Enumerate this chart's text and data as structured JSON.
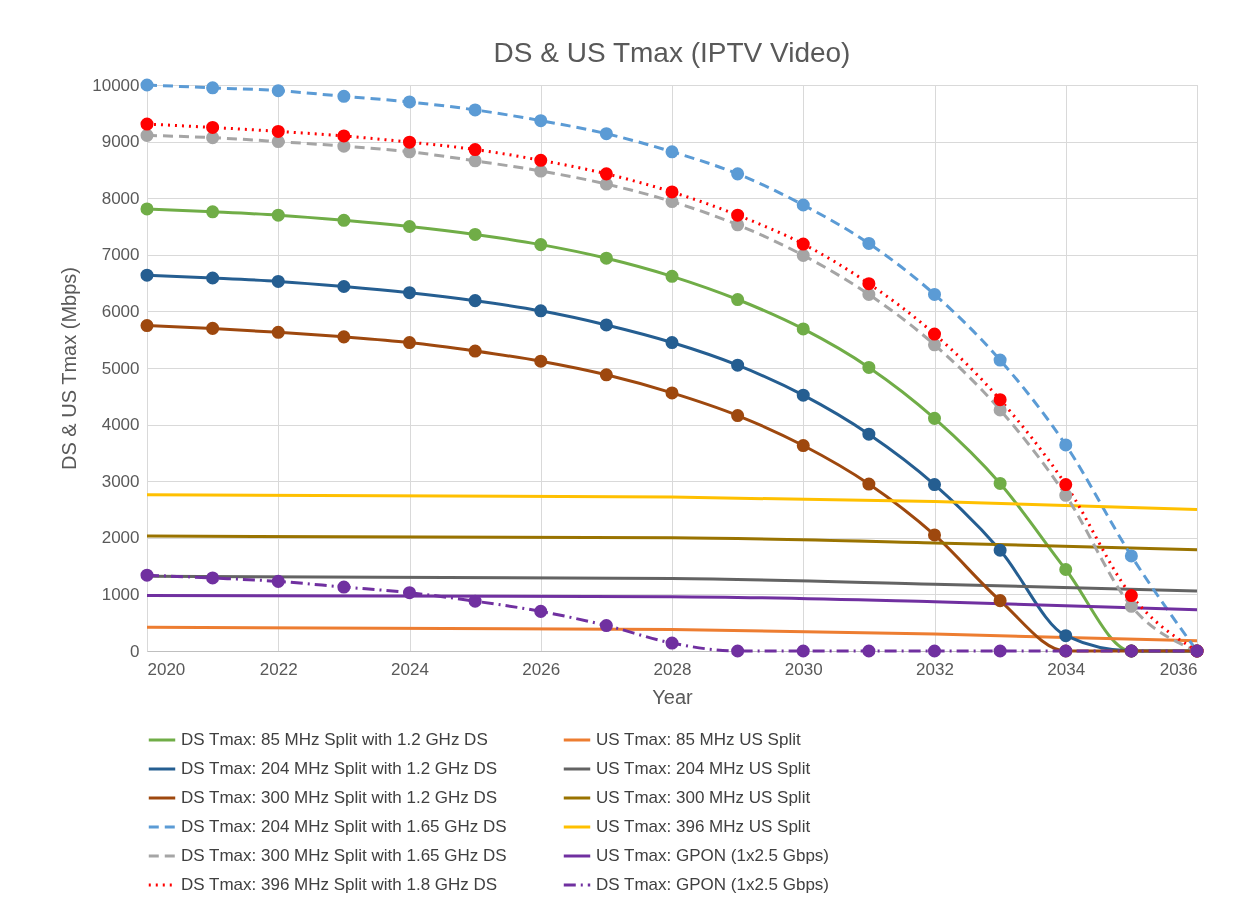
{
  "chart_data": {
    "type": "line",
    "title": "DS & US Tmax (IPTV Video)",
    "xlabel": "Year",
    "ylabel": "DS & US Tmax (Mbps)",
    "x": [
      2020,
      2021,
      2022,
      2023,
      2024,
      2025,
      2026,
      2027,
      2028,
      2029,
      2030,
      2031,
      2032,
      2033,
      2034,
      2035,
      2036
    ],
    "xlim": [
      2020,
      2036
    ],
    "xticks": [
      2020,
      2022,
      2024,
      2026,
      2028,
      2030,
      2032,
      2034,
      2036
    ],
    "ylim": [
      0,
      10000
    ],
    "yticks": [
      0,
      1000,
      2000,
      3000,
      4000,
      5000,
      6000,
      7000,
      8000,
      9000,
      10000
    ],
    "grid": true,
    "legend": "bottom",
    "series": [
      {
        "name": "DS Tmax: 85 MHz Split with 1.2 GHz DS",
        "color": "#70ad47",
        "marker": "circle",
        "line_style": "solid",
        "values": [
          7810,
          7760,
          7700,
          7610,
          7500,
          7360,
          7180,
          6940,
          6620,
          6210,
          5690,
          5010,
          4110,
          2960,
          1440,
          0,
          0
        ]
      },
      {
        "name": "US Tmax: 85 MHz US Split",
        "color": "#ed7d31",
        "marker": "none",
        "line_style": "solid",
        "x": [
          2020,
          2028,
          2032,
          2036
        ],
        "values": [
          420,
          380,
          300,
          180
        ]
      },
      {
        "name": "DS Tmax: 204 MHz Split with 1.2 GHz DS",
        "color": "#255e91",
        "marker": "circle",
        "line_style": "solid",
        "values": [
          6640,
          6590,
          6530,
          6440,
          6330,
          6190,
          6010,
          5760,
          5450,
          5050,
          4520,
          3830,
          2940,
          1780,
          270,
          0,
          0
        ]
      },
      {
        "name": "US Tmax: 204 MHz US Split",
        "color": "#636363",
        "marker": "none",
        "line_style": "solid",
        "x": [
          2020,
          2028,
          2032,
          2036
        ],
        "values": [
          1320,
          1280,
          1180,
          1060
        ]
      },
      {
        "name": "DS Tmax: 300 MHz Split with 1.2 GHz DS",
        "color": "#9e480e",
        "marker": "circle",
        "line_style": "solid",
        "values": [
          5750,
          5700,
          5630,
          5550,
          5450,
          5300,
          5120,
          4880,
          4560,
          4160,
          3630,
          2950,
          2050,
          890,
          0,
          0,
          0
        ]
      },
      {
        "name": "US Tmax: 300 MHz US Split",
        "color": "#997300",
        "marker": "none",
        "line_style": "solid",
        "x": [
          2020,
          2028,
          2032,
          2036
        ],
        "values": [
          2030,
          2000,
          1910,
          1790
        ]
      },
      {
        "name": "DS Tmax: 204 MHz Split with 1.65 GHz DS",
        "color": "#5b9bd5",
        "marker": "circle",
        "line_style": "dashed",
        "values": [
          10000,
          9950,
          9900,
          9800,
          9700,
          9560,
          9370,
          9140,
          8820,
          8430,
          7880,
          7200,
          6300,
          5140,
          3640,
          1680,
          0
        ]
      },
      {
        "name": "US Tmax: 396 MHz US Split",
        "color": "#ffc000",
        "marker": "none",
        "line_style": "solid",
        "x": [
          2020,
          2028,
          2032,
          2036
        ],
        "values": [
          2760,
          2720,
          2640,
          2500
        ]
      },
      {
        "name": "DS Tmax: 300 MHz Split with 1.65 GHz DS",
        "color": "#a5a5a5",
        "marker": "circle",
        "line_style": "dashed",
        "values": [
          9110,
          9070,
          9000,
          8920,
          8820,
          8660,
          8480,
          8250,
          7940,
          7530,
          6990,
          6300,
          5410,
          4260,
          2750,
          790,
          0
        ]
      },
      {
        "name": "US Tmax: GPON (1x2.5 Gbps)",
        "color": "#7030a0",
        "marker": "none",
        "line_style": "solid",
        "x": [
          2020,
          2028,
          2032,
          2036
        ],
        "values": [
          980,
          960,
          870,
          730
        ]
      },
      {
        "name": "DS Tmax: 396 MHz Split with 1.8 GHz DS",
        "color": "#ff0000",
        "marker": "circle",
        "line_style": "dotted",
        "values": [
          9310,
          9250,
          9180,
          9100,
          8990,
          8860,
          8670,
          8430,
          8110,
          7700,
          7190,
          6490,
          5600,
          4440,
          2940,
          980,
          0
        ]
      },
      {
        "name": "DS Tmax: GPON (1x2.5 Gbps)",
        "color": "#7030a0",
        "marker": "circle",
        "line_style": "dashdot",
        "values": [
          1340,
          1290,
          1230,
          1130,
          1030,
          880,
          700,
          450,
          140,
          0,
          0,
          0,
          0,
          0,
          0,
          0,
          0
        ]
      }
    ]
  }
}
